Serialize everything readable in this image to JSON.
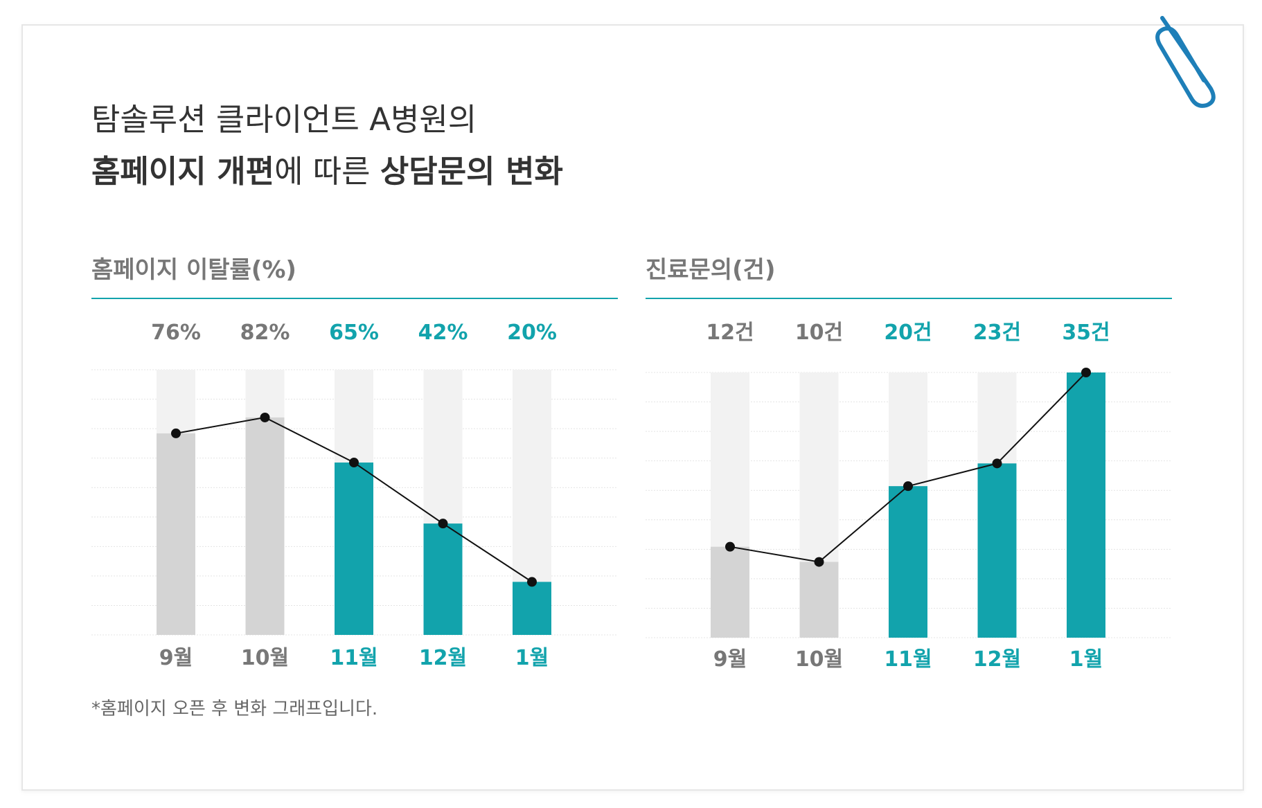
{
  "title": {
    "line1": "탐솔루션 클라이언트 A병원의",
    "line2_bold1": "홈페이지 개편",
    "line2_mid": "에 따른 ",
    "line2_bold2": "상담문의 변화"
  },
  "footnote": "*홈페이지 오픈 후 변화 그래프입니다.",
  "colors": {
    "accent": "#12A3AC",
    "before_bar": "#D4D4D4",
    "before_text": "#777777",
    "track": "#F2F2F2",
    "line": "#111111",
    "rule": "#12A3AC",
    "clip": "#1E7FB8"
  },
  "icons": {
    "corner": "paperclip-icon"
  },
  "chart_data": [
    {
      "type": "bar",
      "title": "홈페이지 이탈률(%)",
      "categories": [
        "9월",
        "10월",
        "11월",
        "12월",
        "1월"
      ],
      "values": [
        76,
        82,
        65,
        42,
        20
      ],
      "value_labels": [
        "76%",
        "82%",
        "65%",
        "42%",
        "20%"
      ],
      "highlighted": [
        false,
        false,
        true,
        true,
        true
      ],
      "ylim": [
        0,
        100
      ],
      "line_overlay": true,
      "grid": true
    },
    {
      "type": "bar",
      "title": "진료문의(건)",
      "categories": [
        "9월",
        "10월",
        "11월",
        "12월",
        "1월"
      ],
      "values": [
        12,
        10,
        20,
        23,
        35
      ],
      "value_labels": [
        "12건",
        "10건",
        "20건",
        "23건",
        "35건"
      ],
      "highlighted": [
        false,
        false,
        true,
        true,
        true
      ],
      "ylim": [
        0,
        35
      ],
      "line_overlay": true,
      "grid": true
    }
  ]
}
